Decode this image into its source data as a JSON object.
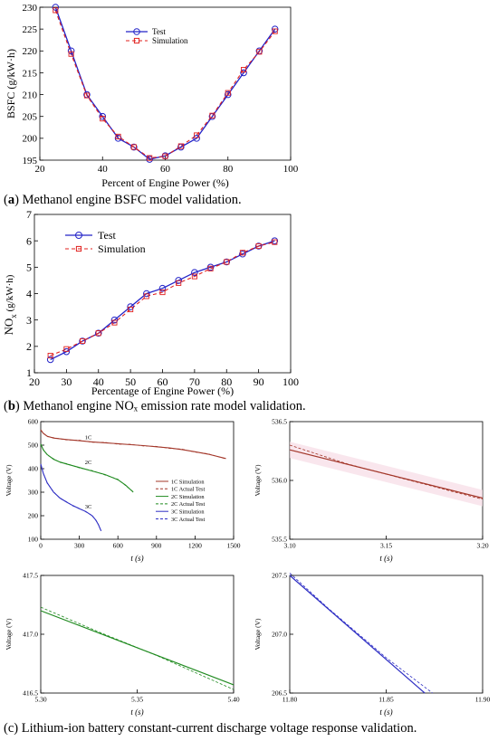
{
  "captions": {
    "a_letter": "a",
    "a_text": "Methanol engine BSFC model validation.",
    "b_letter": "b",
    "b_text": "Methanol engine NOₓ emission rate model validation.",
    "c_text": "(c) Lithium-ion battery constant-current discharge voltage response validation."
  },
  "colors": {
    "test": "#2323c8",
    "simulation": "#e0201e",
    "c1": "#a3372a",
    "c2": "#1f8a1f",
    "c3": "#2f2fc4",
    "band": "#f7dce6"
  },
  "chart_data": [
    {
      "id": "a",
      "type": "line",
      "title": "",
      "xlabel": "Percent of Engine Power (%)",
      "ylabel": "BSFC (g/kW·h)",
      "xlim": [
        20,
        100
      ],
      "ylim": [
        195,
        230
      ],
      "xticks": [
        "20",
        "40",
        "60",
        "80",
        "100"
      ],
      "yticks": [
        "195",
        "200",
        "205",
        "210",
        "215",
        "220",
        "225",
        "230"
      ],
      "legend_position": "top-center",
      "x": [
        25,
        30,
        35,
        40,
        45,
        50,
        55,
        60,
        65,
        70,
        75,
        80,
        85,
        90,
        95
      ],
      "series": [
        {
          "name": "Test",
          "style": "solid-circle",
          "values": [
            230,
            220,
            210,
            205,
            200,
            198,
            195.2,
            196,
            198,
            200,
            205,
            210,
            215,
            220,
            225
          ]
        },
        {
          "name": "Simulation",
          "style": "dashed-square",
          "values": [
            229.3,
            219.3,
            209.8,
            204.5,
            200.4,
            198,
            195.5,
            195.9,
            198.2,
            200.7,
            205.2,
            210.4,
            215.7,
            219.8,
            224.5
          ]
        }
      ]
    },
    {
      "id": "b",
      "type": "line",
      "title": "",
      "xlabel": "Percentage of Engine Power (%)",
      "ylabel_main": "NO",
      "ylabel_sub": "x",
      "ylabel_unit": "(g/kW·h)",
      "xlim": [
        20,
        100
      ],
      "ylim": [
        1,
        7
      ],
      "xticks": [
        "20",
        "30",
        "40",
        "50",
        "60",
        "70",
        "80",
        "90",
        "100"
      ],
      "yticks": [
        "1",
        "2",
        "3",
        "4",
        "5",
        "6",
        "7"
      ],
      "legend_position": "top-left",
      "x": [
        25,
        30,
        35,
        40,
        45,
        50,
        55,
        60,
        65,
        70,
        75,
        80,
        85,
        90,
        95
      ],
      "series": [
        {
          "name": "Test",
          "style": "solid-circle",
          "values": [
            1.5,
            1.8,
            2.2,
            2.5,
            3.0,
            3.5,
            4.0,
            4.2,
            4.5,
            4.8,
            5.0,
            5.2,
            5.5,
            5.8,
            6.0
          ]
        },
        {
          "name": "Simulation",
          "style": "dashed-square",
          "values": [
            1.65,
            1.9,
            2.2,
            2.5,
            2.9,
            3.4,
            3.9,
            4.05,
            4.4,
            4.65,
            4.95,
            5.2,
            5.55,
            5.8,
            5.95
          ]
        }
      ]
    },
    {
      "id": "c1",
      "type": "line",
      "title": "",
      "xlabel": "t (s)",
      "ylabel": "Voltage (V)",
      "xlim": [
        0,
        1500
      ],
      "ylim": [
        100,
        600
      ],
      "xticks": [
        "0",
        "300",
        "600",
        "900",
        "1200",
        "1500"
      ],
      "yticks": [
        "100",
        "200",
        "300",
        "400",
        "500",
        "600"
      ],
      "curve_labels": [
        "1C",
        "2C",
        "3C"
      ],
      "legend_position": "bottom-right",
      "legend": [
        "1C Simulation",
        "1C Actual Test",
        "2C Simulation",
        "2C Actual Test",
        "3C Simulation",
        "3C Actual Test"
      ],
      "series": [
        {
          "name": "1C",
          "x": [
            0,
            20,
            50,
            100,
            200,
            300,
            400,
            500,
            600,
            700,
            800,
            900,
            1000,
            1100,
            1200,
            1300,
            1440
          ],
          "values": [
            565,
            550,
            538,
            530,
            524,
            519,
            514,
            510,
            506,
            502,
            498,
            493,
            488,
            481,
            472,
            462,
            443
          ]
        },
        {
          "name": "2C",
          "x": [
            0,
            20,
            50,
            100,
            150,
            200,
            300,
            400,
            500,
            600,
            660,
            720
          ],
          "values": [
            505,
            480,
            460,
            440,
            428,
            420,
            405,
            390,
            375,
            353,
            330,
            300
          ]
        },
        {
          "name": "3C",
          "x": [
            0,
            20,
            50,
            100,
            150,
            200,
            250,
            300,
            350,
            400,
            430,
            450,
            470
          ],
          "values": [
            420,
            380,
            340,
            300,
            275,
            258,
            243,
            230,
            218,
            200,
            180,
            160,
            135
          ]
        }
      ]
    },
    {
      "id": "c2",
      "type": "line",
      "title": "",
      "xlabel": "t (s)",
      "ylabel": "Voltage (V)",
      "xlim": [
        3.1,
        3.2
      ],
      "ylim": [
        535.5,
        536.5
      ],
      "xticks": [
        "3.10",
        "3.15",
        "3.20"
      ],
      "yticks": [
        "535.5",
        "536.0",
        "536.5"
      ],
      "series": [
        {
          "name": "1C Simulation",
          "x": [
            3.1,
            3.2
          ],
          "values": [
            536.26,
            535.85
          ]
        },
        {
          "name": "1C Actual Test",
          "x": [
            3.1,
            3.13,
            3.16,
            3.2
          ],
          "values": [
            536.3,
            536.14,
            536.01,
            535.84
          ]
        }
      ]
    },
    {
      "id": "c3",
      "type": "line",
      "title": "",
      "xlabel": "t (s)",
      "ylabel": "Voltage (V)",
      "xlim": [
        5.3,
        5.4
      ],
      "ylim": [
        416.5,
        417.5
      ],
      "xticks": [
        "5.30",
        "5.35",
        "5.40"
      ],
      "yticks": [
        "416.5",
        "417.0",
        "417.5"
      ],
      "series": [
        {
          "name": "2C Simulation",
          "x": [
            5.3,
            5.4
          ],
          "values": [
            417.2,
            416.57
          ]
        },
        {
          "name": "2C Actual Test",
          "x": [
            5.3,
            5.33,
            5.36,
            5.4
          ],
          "values": [
            417.23,
            417.02,
            416.82,
            416.53
          ]
        }
      ]
    },
    {
      "id": "c4",
      "type": "line",
      "title": "",
      "xlabel": "t (s)",
      "ylabel": "Voltage (V)",
      "xlim": [
        11.8,
        11.9
      ],
      "ylim": [
        206.5,
        207.5
      ],
      "xticks": [
        "11.80",
        "11.85",
        "11.90"
      ],
      "yticks": [
        "206.5",
        "207.0",
        "207.5"
      ],
      "series": [
        {
          "name": "3C Simulation",
          "x": [
            11.8,
            11.87
          ],
          "values": [
            207.5,
            206.5
          ]
        },
        {
          "name": "3C Actual Test",
          "x": [
            11.8,
            11.82,
            11.85,
            11.874
          ],
          "values": [
            207.52,
            207.22,
            206.8,
            206.5
          ]
        }
      ]
    }
  ]
}
